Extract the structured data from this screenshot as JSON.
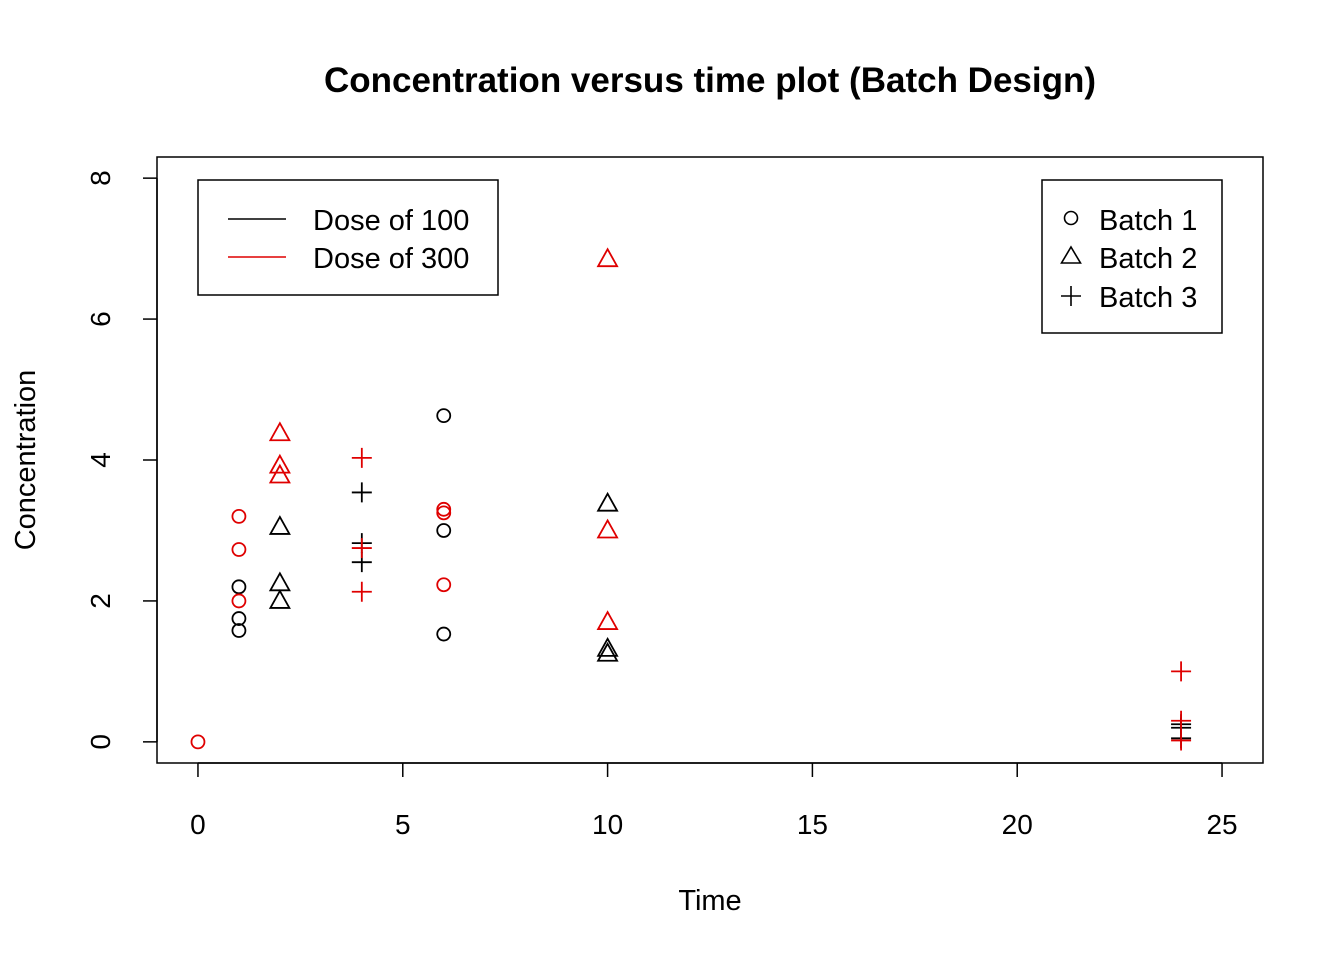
{
  "chart_data": {
    "type": "scatter",
    "title": "Concentration versus time plot (Batch Design)",
    "xlabel": "Time",
    "ylabel": "Concentration",
    "xlim": [
      -1,
      26
    ],
    "ylim": [
      -0.3,
      8.3
    ],
    "x_ticks": [
      0,
      5,
      10,
      15,
      20,
      25
    ],
    "y_ticks": [
      0,
      2,
      4,
      6,
      8
    ],
    "x_tick_labels": [
      "0",
      "5",
      "10",
      "15",
      "20",
      "25"
    ],
    "y_tick_labels": [
      "0",
      "2",
      "4",
      "6",
      "8"
    ],
    "grid": false,
    "colors": {
      "dose_100": "#000000",
      "dose_300": "#DF0000"
    },
    "color_legend": {
      "placement": "top-left",
      "entries": [
        {
          "label": "Dose of 100",
          "color": "#000000"
        },
        {
          "label": "Dose of 300",
          "color": "#DF0000"
        }
      ]
    },
    "shape_legend": {
      "placement": "top-right",
      "entries": [
        {
          "label": "Batch 1",
          "marker": "circle"
        },
        {
          "label": "Batch 2",
          "marker": "triangle"
        },
        {
          "label": "Batch 3",
          "marker": "plus"
        }
      ]
    },
    "series": [
      {
        "dose": "100",
        "batch": "1",
        "marker": "circle",
        "color": "#000000",
        "points": [
          {
            "x": 1,
            "y": 2.2
          },
          {
            "x": 1,
            "y": 1.75
          },
          {
            "x": 1,
            "y": 1.58
          },
          {
            "x": 6,
            "y": 4.63
          },
          {
            "x": 6,
            "y": 3.0
          },
          {
            "x": 6,
            "y": 1.53
          }
        ]
      },
      {
        "dose": "100",
        "batch": "2",
        "marker": "triangle",
        "color": "#000000",
        "points": [
          {
            "x": 2,
            "y": 3.05
          },
          {
            "x": 2,
            "y": 2.25
          },
          {
            "x": 2,
            "y": 2.0
          },
          {
            "x": 10,
            "y": 3.38
          },
          {
            "x": 10,
            "y": 1.32
          },
          {
            "x": 10,
            "y": 1.25
          }
        ]
      },
      {
        "dose": "100",
        "batch": "3",
        "marker": "plus",
        "color": "#000000",
        "points": [
          {
            "x": 4,
            "y": 3.54
          },
          {
            "x": 4,
            "y": 2.82
          },
          {
            "x": 4,
            "y": 2.55
          },
          {
            "x": 24,
            "y": 0.25
          },
          {
            "x": 24,
            "y": 0.2
          },
          {
            "x": 24,
            "y": 0.05
          }
        ]
      },
      {
        "dose": "300",
        "batch": "1",
        "marker": "circle",
        "color": "#DF0000",
        "points": [
          {
            "x": 0,
            "y": 0.0
          },
          {
            "x": 1,
            "y": 3.2
          },
          {
            "x": 1,
            "y": 2.73
          },
          {
            "x": 1,
            "y": 2.0
          },
          {
            "x": 6,
            "y": 3.3
          },
          {
            "x": 6,
            "y": 3.25
          },
          {
            "x": 6,
            "y": 2.23
          }
        ]
      },
      {
        "dose": "300",
        "batch": "2",
        "marker": "triangle",
        "color": "#DF0000",
        "points": [
          {
            "x": 2,
            "y": 4.38
          },
          {
            "x": 2,
            "y": 3.92
          },
          {
            "x": 2,
            "y": 3.78
          },
          {
            "x": 10,
            "y": 6.85
          },
          {
            "x": 10,
            "y": 3.0
          },
          {
            "x": 10,
            "y": 1.7
          }
        ]
      },
      {
        "dose": "300",
        "batch": "3",
        "marker": "plus",
        "color": "#DF0000",
        "points": [
          {
            "x": 4,
            "y": 4.03
          },
          {
            "x": 4,
            "y": 2.75
          },
          {
            "x": 4,
            "y": 2.13
          },
          {
            "x": 24,
            "y": 1.0
          },
          {
            "x": 24,
            "y": 0.3
          },
          {
            "x": 24,
            "y": 0.02
          }
        ]
      }
    ]
  }
}
